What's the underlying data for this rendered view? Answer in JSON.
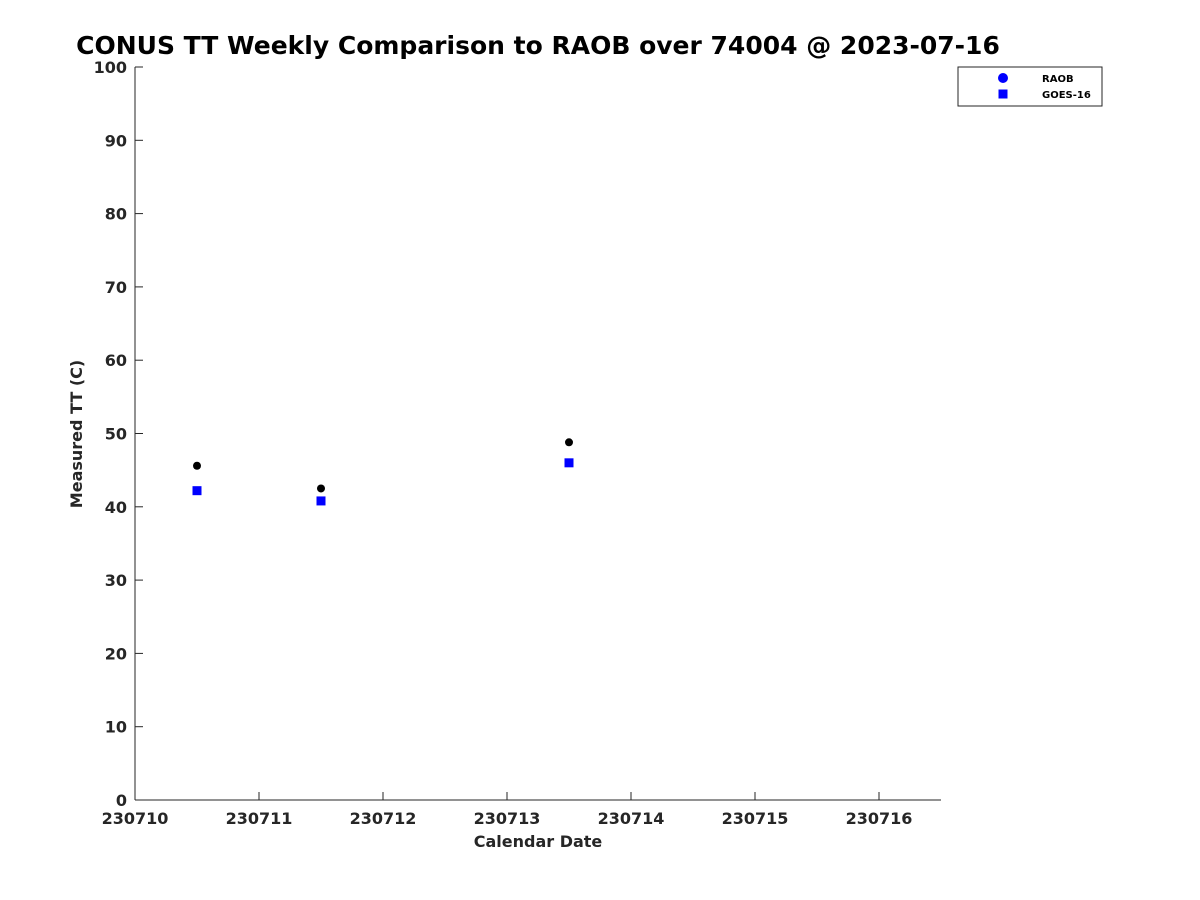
{
  "chart_data": {
    "type": "scatter",
    "title": "CONUS TT Weekly Comparison to RAOB over 74004 @ 2023-07-16",
    "xlabel": "Calendar Date",
    "ylabel": "Measured TT (C)",
    "xlim": [
      230710,
      230716.5
    ],
    "ylim": [
      0,
      100
    ],
    "x_ticks": [
      230710,
      230711,
      230712,
      230713,
      230714,
      230715,
      230716
    ],
    "x_tick_labels": [
      "230710",
      "230711",
      "230712",
      "230713",
      "230714",
      "230715",
      "230716"
    ],
    "y_ticks": [
      0,
      10,
      20,
      30,
      40,
      50,
      60,
      70,
      80,
      90,
      100
    ],
    "y_tick_labels": [
      "0",
      "10",
      "20",
      "30",
      "40",
      "50",
      "60",
      "70",
      "80",
      "90",
      "100"
    ],
    "grid": false,
    "legend_position": "top-right",
    "series": [
      {
        "name": "RAOB",
        "marker": "circle",
        "color": "#000000",
        "legend_color": "#0000ff",
        "x": [
          230710.5,
          230711.5,
          230713.5
        ],
        "y": [
          45.6,
          42.5,
          48.8
        ]
      },
      {
        "name": "GOES-16",
        "marker": "square",
        "color": "#0000ff",
        "legend_color": "#0000ff",
        "x": [
          230710.5,
          230711.5,
          230713.5
        ],
        "y": [
          42.2,
          40.8,
          46.0
        ]
      }
    ]
  }
}
